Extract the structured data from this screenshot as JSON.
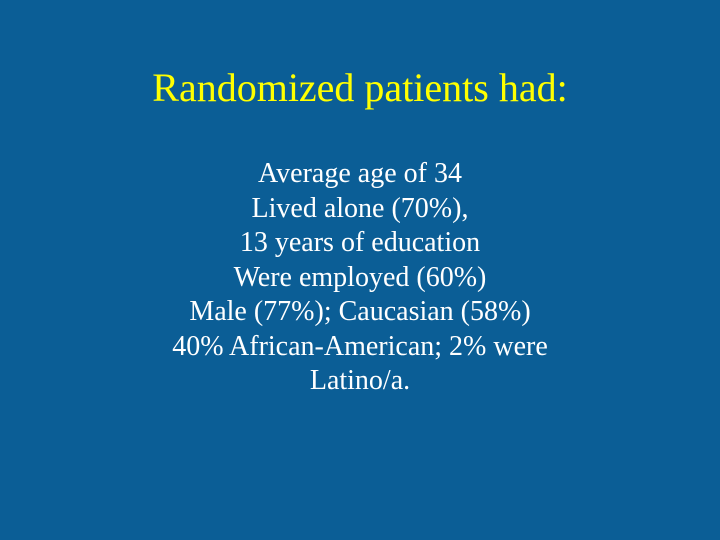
{
  "slide": {
    "title": "Randomized patients had:",
    "lines": [
      "Average age of 34",
      "Lived alone (70%),",
      "13 years of education",
      "Were employed (60%)",
      "Male (77%); Caucasian (58%)",
      "40% African-American; 2% were",
      "Latino/a."
    ]
  },
  "colors": {
    "background": "#0b5e96",
    "title": "#ffff00",
    "body_text": "#ffffff"
  }
}
